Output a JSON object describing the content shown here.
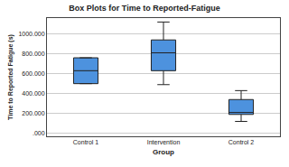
{
  "chart_data": {
    "type": "box",
    "title": "Box Plots for Time to Reported-Fatigue",
    "x_label": "Group",
    "y_label": "Time to Reported Fatigue (s)",
    "categories": [
      "Control 1",
      "Intervention",
      "Control 2"
    ],
    "min": [
      500,
      490,
      120
    ],
    "q1": [
      500,
      630,
      190
    ],
    "median": [
      630,
      810,
      210
    ],
    "q3": [
      760,
      940,
      340
    ],
    "max": [
      760,
      1120,
      430
    ],
    "color": "#4d92de",
    "ylim": [
      -30,
      1160
    ],
    "yticks": [
      {
        "value": 0,
        "label": ".000"
      },
      {
        "value": 200,
        "label": "200.000"
      },
      {
        "value": 400,
        "label": "400.000"
      },
      {
        "value": 600,
        "label": "600.000"
      },
      {
        "value": 800,
        "label": "800.000"
      },
      {
        "value": 1000,
        "label": "1000.000"
      }
    ],
    "grid": true
  }
}
